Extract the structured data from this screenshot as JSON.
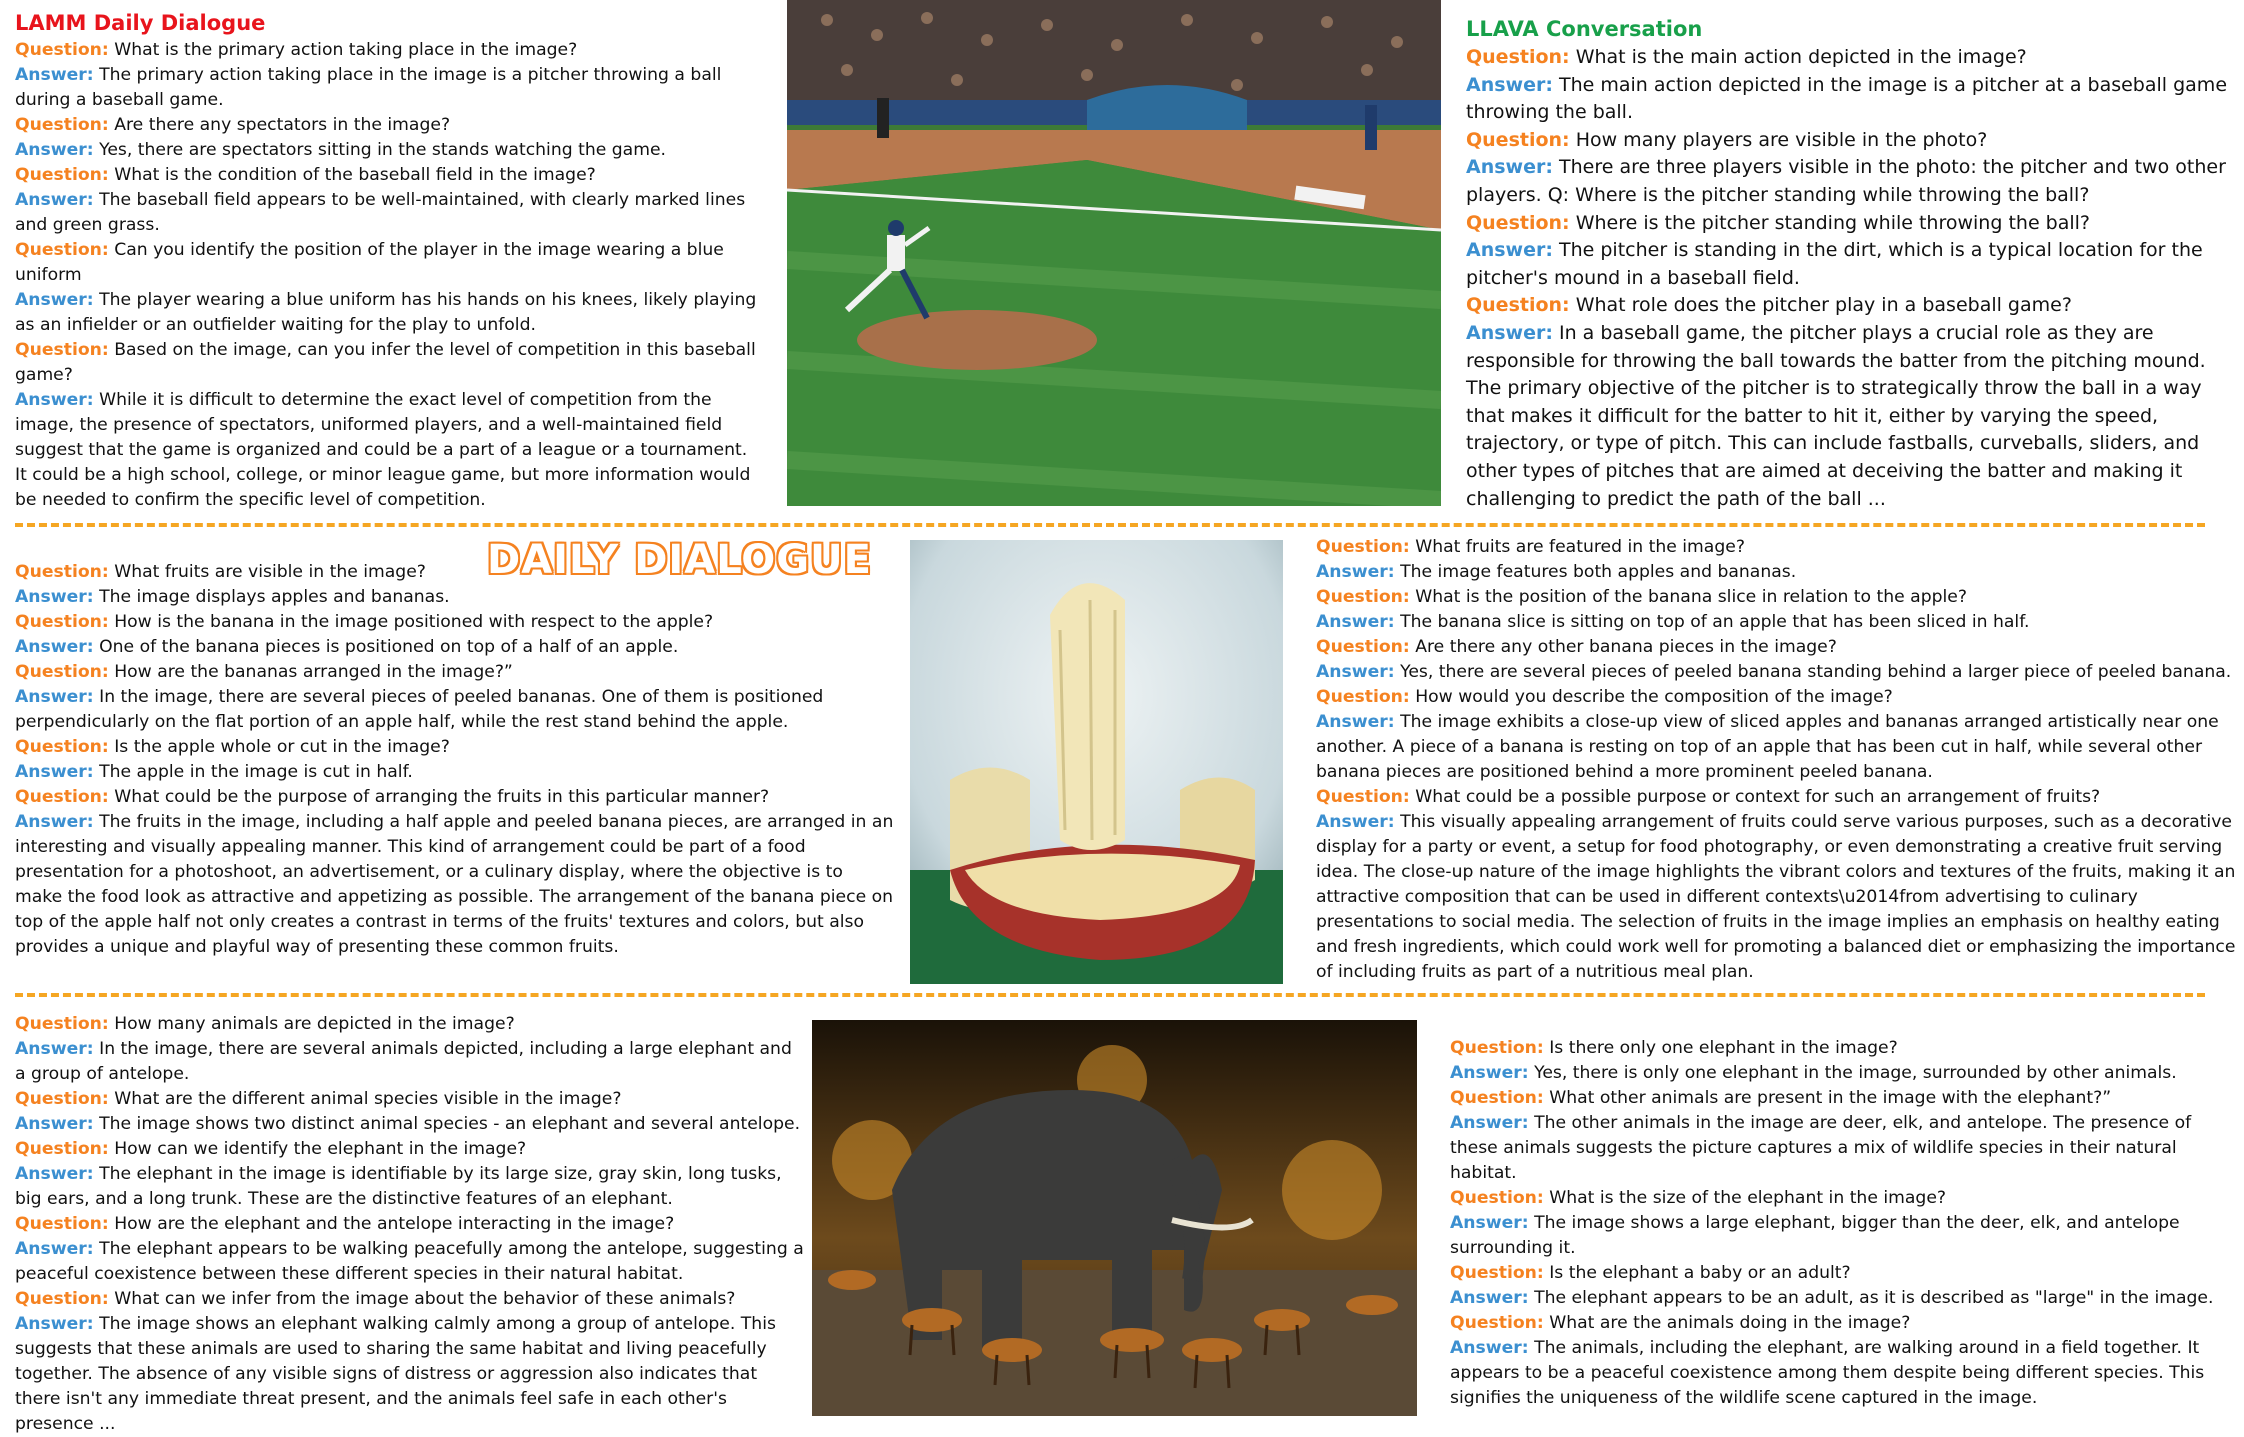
{
  "lamm": {
    "title": "LAMM Daily Dialogue",
    "items": [
      {
        "q_label": "Question:",
        "q": " What is the primary action taking place in the image?",
        "a_label": "Answer:",
        "a": " The primary action taking place in the image is a pitcher throwing a ball during a baseball game."
      },
      {
        "q_label": "Question:",
        "q": " Are there any spectators in the image?",
        "a_label": "Answer:",
        "a": " Yes, there are spectators sitting in the stands watching the game."
      },
      {
        "q_label": "Question:",
        "q": " What is the condition of the baseball field in the image?",
        "a_label": "Answer:",
        "a": " The baseball field appears to be well-maintained, with clearly marked lines and green grass."
      },
      {
        "q_label": "Question:",
        "q": " Can you identify the position of the player in the image wearing a blue uniform",
        "a_label": "Answer:",
        "a": " The player wearing a blue uniform has his hands on his knees, likely playing as an infielder or an outfielder waiting for the play to unfold."
      },
      {
        "q_label": "Question:",
        "q": " Based on the image, can you infer the level of competition in this baseball game?",
        "a_label": "Answer:",
        "a": "  While it is difficult to determine the exact level of competition from the image, the presence of spectators, uniformed players, and a well-maintained field suggest that the game is organized and could be a part of a league or a tournament. It could be a high school, college, or minor league game, but more information would be needed to confirm the specific level of competition."
      }
    ]
  },
  "llava": {
    "title": "LLAVA Conversation",
    "items": [
      {
        "q_label": "Question:",
        "q": " What is the main action depicted in the image?",
        "a_label": "Answer:",
        "a": " The main action depicted in the image is a pitcher at a baseball game throwing the ball."
      },
      {
        "q_label": "Question:",
        "q": " How many players are visible in the photo?",
        "a_label": "Answer:",
        "a": " There are three players visible in the photo: the pitcher and two other players. Q: Where is the pitcher standing while throwing the ball?"
      },
      {
        "q_label": "Question:",
        "q": " Where is the pitcher standing while throwing the ball?",
        "a_label": "Answer:",
        "a": " The pitcher is standing in the dirt, which is a typical location for the pitcher's mound in a baseball field."
      },
      {
        "q_label": "Question:",
        "q": " What role does the pitcher play in a baseball game?",
        "a_label": "Answer:",
        "a": " In a baseball game, the pitcher plays a crucial role as they are responsible for throwing the ball towards the batter from the pitching mound. The primary objective of the pitcher is to strategically throw the ball in a way that makes it difficult for the batter to hit it, either by varying the speed, trajectory, or type of pitch. This can include fastballs, curveballs, sliders, and other types of pitches that are aimed at deceiving the batter and making it challenging to predict the path of the ball ..."
      }
    ]
  },
  "stamp": "DAILY DIALOGUE",
  "fruit_left": {
    "items": [
      {
        "q_label": "Question:",
        "q": " What fruits are visible in the image?",
        "a_label": "Answer:",
        "a": " The image displays apples and bananas."
      },
      {
        "q_label": "Question:",
        "q": " How is the banana in the image positioned with respect to the apple?",
        "a_label": "Answer:",
        "a": " One of the banana pieces is positioned on top of a half of an apple."
      },
      {
        "q_label": "Question:",
        "q": " How are the bananas arranged in the image?”",
        "a_label": "Answer:",
        "a": " In the image, there are several pieces of peeled bananas. One of them is positioned perpendicularly on the flat portion of an apple half, while the rest stand behind the apple."
      },
      {
        "q_label": "Question:",
        "q": " Is the apple whole or cut in the image?",
        "a_label": "Answer:",
        "a": " The apple in the image is cut in half."
      },
      {
        "q_label": "Question:",
        "q": " What could be the purpose of arranging the fruits in this particular manner?",
        "a_label": "Answer:",
        "a": " The fruits in the image, including a half apple and peeled banana pieces, are arranged in an interesting and visually appealing manner. This kind of arrangement could be part of a food presentation for a photoshoot, an advertisement, or a culinary display, where the objective is to make the food look as attractive and appetizing as possible. The arrangement of the banana piece on top of the apple half not only creates a contrast in terms of the fruits' textures and colors, but also provides a unique and playful way of presenting these common fruits."
      }
    ]
  },
  "fruit_right": {
    "items": [
      {
        "q_label": "Question:",
        "q": " What fruits are featured in the image?",
        "a_label": "Answer:",
        "a": " The image features both apples and bananas."
      },
      {
        "q_label": "Question:",
        "q": " What is the position of the banana slice in relation to the apple?",
        "a_label": "Answer:",
        "a": " The banana slice is sitting on top of an apple that has been sliced in half."
      },
      {
        "q_label": "Question:",
        "q": " Are there any other banana pieces in the image?",
        "a_label": "Answer:",
        "a": " Yes, there are several pieces of peeled banana standing behind a larger piece of peeled banana."
      },
      {
        "q_label": "Question:",
        "q": " How would you describe the composition of the image?",
        "a_label": "Answer:",
        "a": " The image exhibits a close-up view of sliced apples and bananas arranged artistically near one another. A piece of a banana is resting on top of an apple that has been cut in half, while several other banana pieces are positioned behind a more prominent peeled banana."
      },
      {
        "q_label": "Question:",
        "q": " What could be a possible purpose or context for such an arrangement of fruits?",
        "a_label": "Answer:",
        "a": " This visually appealing arrangement of fruits could serve various purposes, such as a decorative display for a party or event, a setup for food photography, or even demonstrating a creative fruit serving idea. The close-up nature of the image highlights the vibrant colors and textures of the fruits, making it an attractive composition that can be used in different contexts\\u2014from advertising to culinary presentations to social media. The selection of fruits in the image implies an emphasis on healthy eating and fresh ingredients, which could work well for promoting a balanced diet or emphasizing the importance of including fruits as part of a nutritious meal plan."
      }
    ]
  },
  "elephant_left": {
    "items": [
      {
        "q_label": "Question:",
        "q": " How many animals are depicted in the image?",
        "a_label": "Answer:",
        "a": " In the image, there are several animals depicted, including a large elephant and a group of antelope."
      },
      {
        "q_label": "Question:",
        "q": " What are the different animal species visible in the image?",
        "a_label": "Answer:",
        "a": " The image shows two distinct animal species - an elephant and several antelope."
      },
      {
        "q_label": "Question:",
        "q": " How can we identify the elephant in the image?",
        "a_label": "Answer:",
        "a": " The elephant in the image is identifiable by its large size, gray skin, long tusks, big ears, and a long trunk. These are the distinctive features of an elephant."
      },
      {
        "q_label": "Question:",
        "q": " How are the elephant and the antelope interacting in the image?",
        "a_label": "Answer:",
        "a": " The elephant appears to be walking peacefully among the antelope, suggesting a peaceful coexistence between these different species in their natural habitat."
      },
      {
        "q_label": "Question:",
        "q": " What can we infer from the image about the behavior of these animals?",
        "a_label": "Answer:",
        "a": " The image shows an elephant walking calmly among a group of antelope. This suggests that these animals are used to sharing the same habitat and living peacefully together. The absence of any visible signs of distress or aggression also indicates that there isn't any immediate threat present, and the animals feel safe in each other's presence ..."
      }
    ]
  },
  "elephant_right": {
    "items": [
      {
        "q_label": "Question:",
        "q": " Is there only one elephant in the image?",
        "a_label": "Answer:",
        "a": " Yes, there is only one elephant in the image, surrounded by other animals."
      },
      {
        "q_label": "Question:",
        "q": " What other animals are present in the image with the elephant?”",
        "a_label": "Answer:",
        "a": " The other animals in the image are deer, elk, and antelope. The presence of these animals suggests the picture captures a mix of wildlife species in their natural habitat."
      },
      {
        "q_label": "Question:",
        "q": " What is the size of the elephant in the image?",
        "a_label": "Answer:",
        "a": " The image shows a large elephant, bigger than the deer, elk, and antelope surrounding it."
      },
      {
        "q_label": "Question:",
        "q": " Is the elephant a baby or an adult?",
        "a_label": "Answer:",
        "a": " The elephant appears to be an adult, as it is described as \"large\" in the image."
      },
      {
        "q_label": "Question:",
        "q": " What are the animals doing in the image?",
        "a_label": "Answer:",
        "a": " The animals, including the elephant, are walking around in a field together. It appears to be a peaceful coexistence among them despite being different species. This signifies the uniqueness of the wildlife scene captured in the image."
      }
    ]
  },
  "photos": {
    "baseball": "baseball-photo",
    "fruit": "fruit-photo",
    "elephant": "elephant-photo"
  },
  "colors": {
    "question": "#f58220",
    "answer": "#3b8fd0",
    "divider": "#f5a623",
    "lamm_title": "#e8141c",
    "llava_title": "#18a04a"
  }
}
